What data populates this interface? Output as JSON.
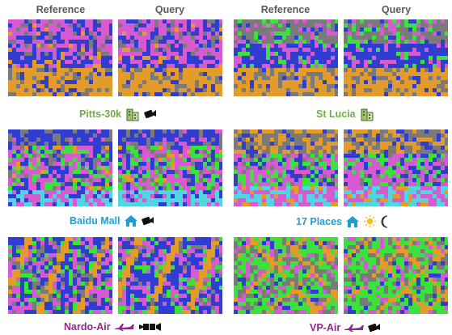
{
  "headers": {
    "left_reference": "Reference",
    "left_query": "Query",
    "right_reference": "Reference",
    "right_query": "Query"
  },
  "datasets": [
    {
      "name": "Pitts-30k",
      "label_color": "#70ad47",
      "icons": [
        "building-icon",
        "camera-icon"
      ]
    },
    {
      "name": "St Lucia",
      "label_color": "#70ad47",
      "icons": [
        "building-icon"
      ]
    },
    {
      "name": "Baidu Mall",
      "label_color": "#1f9ed4",
      "icons": [
        "home-icon",
        "camera-icon"
      ]
    },
    {
      "name": "17 Places",
      "label_color": "#1f9ed4",
      "icons": [
        "home-icon",
        "sun-icon",
        "moon-icon"
      ]
    },
    {
      "name": "Nardo-Air",
      "label_color": "#8e2a8e",
      "icons": [
        "airplane-icon",
        "thermal-camera-icon"
      ]
    },
    {
      "name": "VP-Air",
      "label_color": "#8e2a8e",
      "icons": [
        "airplane-icon",
        "camera-icon"
      ]
    }
  ],
  "palette": {
    "blue": "#2f3dd0",
    "pink": "#d65ad0",
    "orange": "#e39b2c",
    "green": "#3ce23c",
    "cyan": "#4fd6e0",
    "gray": "#7a7a7a"
  }
}
